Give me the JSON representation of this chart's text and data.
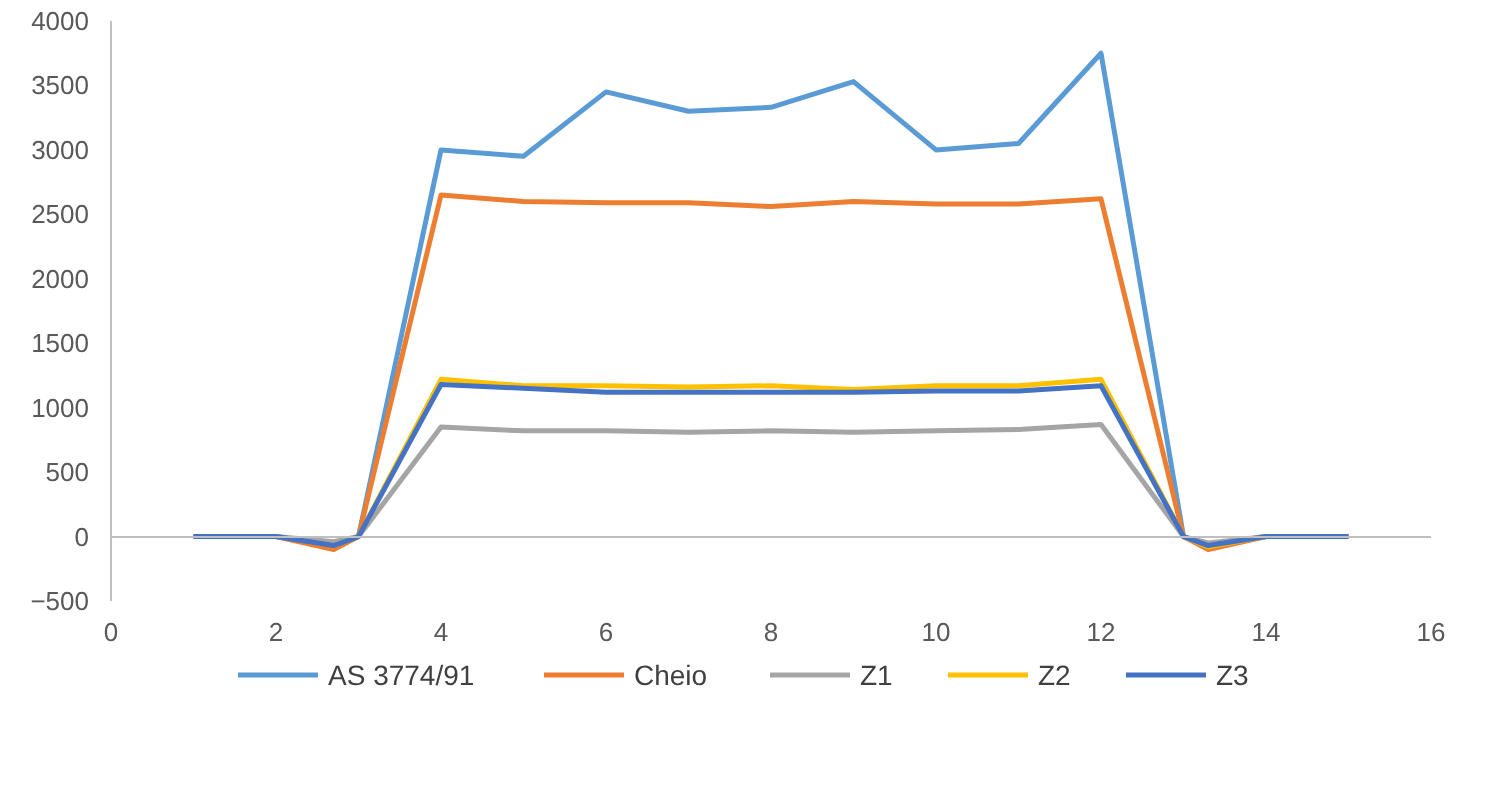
{
  "chart_data": {
    "type": "line",
    "x": [
      1,
      2,
      2.7,
      3,
      4,
      5,
      6,
      7,
      8,
      9,
      10,
      11,
      12,
      13,
      13.3,
      14,
      15
    ],
    "series": [
      {
        "name": "AS 3774/91",
        "color": "#5b9bd5",
        "values": [
          0,
          0,
          -80,
          0,
          3000,
          2950,
          3450,
          3300,
          3330,
          3530,
          3000,
          3050,
          3750,
          0,
          -80,
          0,
          0
        ]
      },
      {
        "name": "Cheio",
        "color": "#ed7d31",
        "values": [
          0,
          0,
          -100,
          0,
          2650,
          2600,
          2590,
          2590,
          2560,
          2600,
          2580,
          2580,
          2620,
          0,
          -100,
          0,
          0
        ]
      },
      {
        "name": "Z1",
        "color": "#a5a5a5",
        "values": [
          0,
          0,
          -40,
          0,
          850,
          820,
          820,
          810,
          820,
          810,
          820,
          830,
          870,
          0,
          -50,
          0,
          0
        ]
      },
      {
        "name": "Z2",
        "color": "#ffc000",
        "values": [
          null,
          null,
          -70,
          0,
          1220,
          1170,
          1170,
          1160,
          1170,
          1140,
          1170,
          1170,
          1220,
          0,
          -80,
          0,
          0
        ]
      },
      {
        "name": "Z3",
        "color": "#4472c4",
        "values": [
          0,
          0,
          -70,
          0,
          1180,
          1150,
          1120,
          1120,
          1120,
          1120,
          1130,
          1130,
          1170,
          0,
          -70,
          0,
          0
        ]
      }
    ],
    "xlim": [
      0,
      16
    ],
    "xticks": [
      0,
      2,
      4,
      6,
      8,
      10,
      12,
      14,
      16
    ],
    "ylim": [
      -500,
      4000
    ],
    "yticks": [
      -500,
      0,
      500,
      1000,
      1500,
      2000,
      2500,
      3000,
      3500,
      4000
    ],
    "legend": "bottom"
  }
}
